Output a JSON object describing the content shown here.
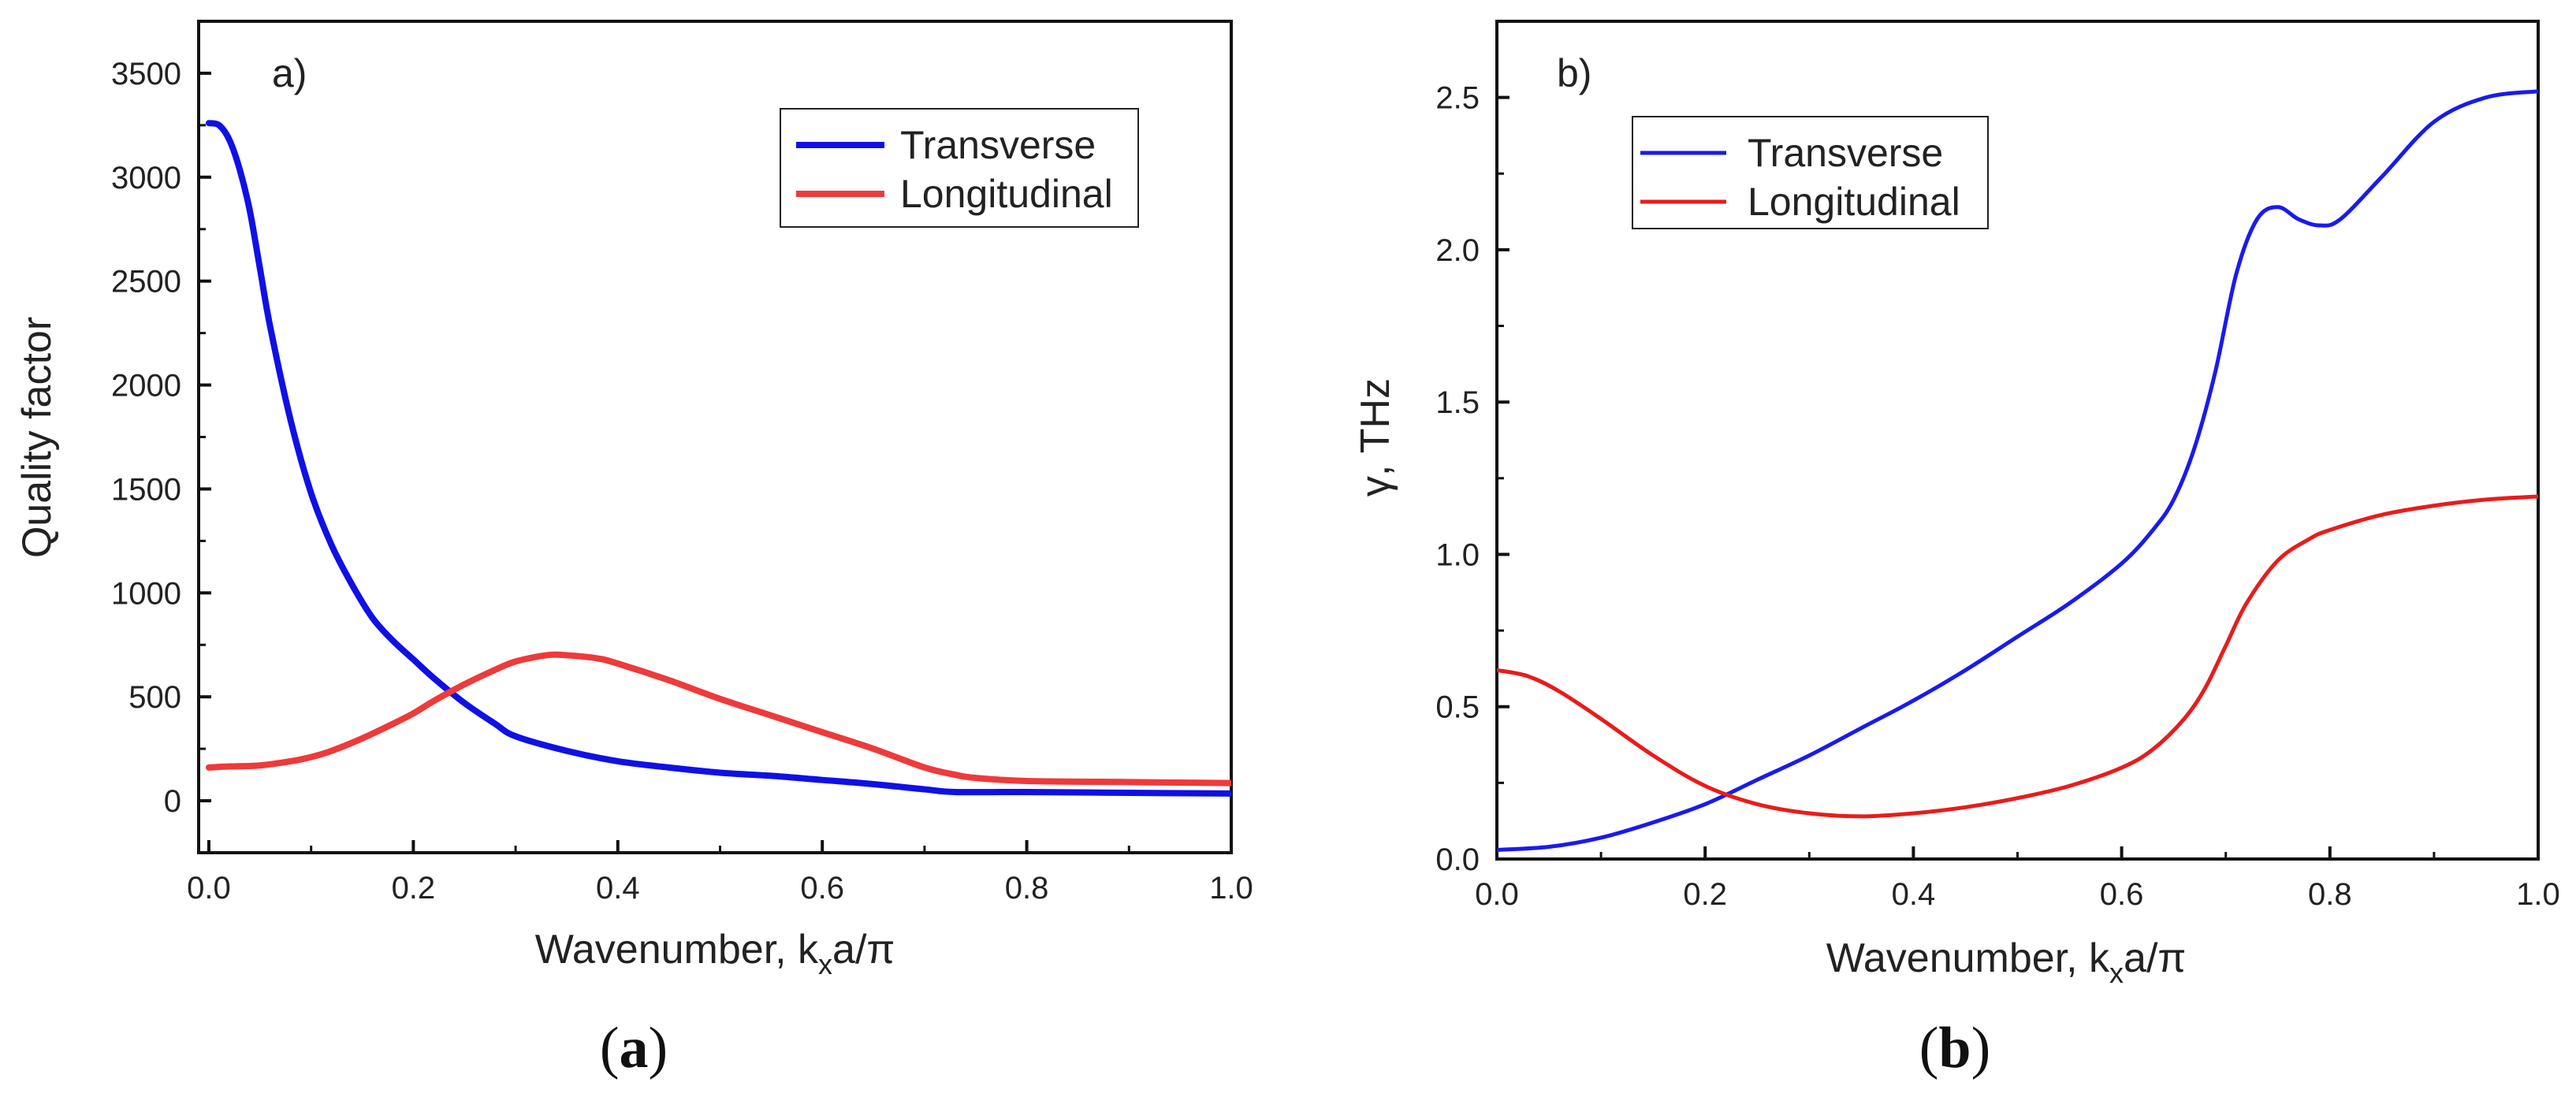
{
  "chart_data": [
    {
      "type": "line",
      "panel_label": "a)",
      "caption_paren_open": "(",
      "caption_letter": "a",
      "caption_paren_close": ")",
      "xlabel_main": "Wavenumber, k",
      "xlabel_sub": "x",
      "xlabel_tail": "a/π",
      "ylabel": "Quality factor",
      "xlim": [
        -0.01,
        1.0
      ],
      "ylim": [
        -250,
        3750
      ],
      "xticks": [
        "0.0",
        "0.2",
        "0.4",
        "0.6",
        "0.8",
        "1.0"
      ],
      "xtick_values": [
        0,
        0.2,
        0.4,
        0.6,
        0.8,
        1.0
      ],
      "yticks": [
        "0",
        "500",
        "1000",
        "1500",
        "2000",
        "2500",
        "3000",
        "3500"
      ],
      "ytick_values": [
        0,
        500,
        1000,
        1500,
        2000,
        2500,
        3000,
        3500
      ],
      "legend_position": "top-right",
      "series": [
        {
          "name": "Transverse",
          "color": "#1010e6",
          "x": [
            0,
            0.01,
            0.02,
            0.03,
            0.04,
            0.05,
            0.06,
            0.08,
            0.1,
            0.12,
            0.14,
            0.16,
            0.18,
            0.2,
            0.22,
            0.25,
            0.28,
            0.3,
            0.35,
            0.4,
            0.45,
            0.5,
            0.55,
            0.6,
            0.65,
            0.7,
            0.73,
            0.8,
            0.9,
            1.0
          ],
          "y": [
            3260,
            3250,
            3180,
            3040,
            2840,
            2560,
            2280,
            1830,
            1480,
            1230,
            1040,
            880,
            770,
            680,
            590,
            470,
            370,
            310,
            240,
            190,
            160,
            135,
            120,
            100,
            80,
            55,
            42,
            42,
            38,
            35
          ]
        },
        {
          "name": "Longitudinal",
          "color": "#ee3a3a",
          "x": [
            0,
            0.02,
            0.05,
            0.08,
            0.1,
            0.12,
            0.15,
            0.18,
            0.2,
            0.22,
            0.25,
            0.28,
            0.3,
            0.33,
            0.35,
            0.38,
            0.4,
            0.45,
            0.5,
            0.55,
            0.6,
            0.65,
            0.7,
            0.73,
            0.75,
            0.8,
            0.9,
            1.0
          ],
          "y": [
            160,
            165,
            170,
            190,
            210,
            240,
            300,
            370,
            420,
            480,
            560,
            630,
            670,
            700,
            700,
            685,
            660,
            580,
            490,
            410,
            330,
            250,
            160,
            125,
            110,
            95,
            90,
            85
          ]
        }
      ]
    },
    {
      "type": "line",
      "panel_label": "b)",
      "caption_paren_open": "(",
      "caption_letter": "b",
      "caption_paren_close": ")",
      "xlabel_main": "Wavenumber, k",
      "xlabel_sub": "x",
      "xlabel_tail": "a/π",
      "ylabel": "γ, THz",
      "xlim": [
        0,
        1.0
      ],
      "ylim": [
        0,
        2.75
      ],
      "xticks": [
        "0.0",
        "0.2",
        "0.4",
        "0.6",
        "0.8",
        "1.0"
      ],
      "xtick_values": [
        0,
        0.2,
        0.4,
        0.6,
        0.8,
        1.0
      ],
      "yticks": [
        "0.0",
        "0.5",
        "1.0",
        "1.5",
        "2.0",
        "2.5"
      ],
      "ytick_values": [
        0,
        0.5,
        1.0,
        1.5,
        2.0,
        2.5
      ],
      "legend_position": "top-left",
      "series": [
        {
          "name": "Transverse",
          "color": "#1a1aee",
          "x": [
            0,
            0.05,
            0.1,
            0.15,
            0.2,
            0.25,
            0.3,
            0.35,
            0.4,
            0.45,
            0.5,
            0.55,
            0.6,
            0.63,
            0.65,
            0.67,
            0.69,
            0.71,
            0.73,
            0.75,
            0.77,
            0.79,
            0.81,
            0.85,
            0.9,
            0.95,
            1.0
          ],
          "y": [
            0.03,
            0.04,
            0.07,
            0.12,
            0.18,
            0.26,
            0.34,
            0.43,
            0.52,
            0.62,
            0.73,
            0.84,
            0.97,
            1.08,
            1.18,
            1.35,
            1.6,
            1.92,
            2.1,
            2.14,
            2.1,
            2.08,
            2.1,
            2.24,
            2.42,
            2.5,
            2.52
          ]
        },
        {
          "name": "Longitudinal",
          "color": "#e81c1c",
          "x": [
            0,
            0.03,
            0.06,
            0.1,
            0.15,
            0.2,
            0.25,
            0.3,
            0.35,
            0.4,
            0.45,
            0.5,
            0.55,
            0.6,
            0.63,
            0.66,
            0.68,
            0.7,
            0.72,
            0.75,
            0.78,
            0.8,
            0.85,
            0.9,
            0.95,
            1.0
          ],
          "y": [
            0.62,
            0.6,
            0.55,
            0.46,
            0.34,
            0.24,
            0.18,
            0.15,
            0.14,
            0.15,
            0.17,
            0.2,
            0.24,
            0.3,
            0.36,
            0.46,
            0.56,
            0.7,
            0.84,
            0.98,
            1.05,
            1.08,
            1.13,
            1.16,
            1.18,
            1.19
          ]
        }
      ]
    }
  ]
}
